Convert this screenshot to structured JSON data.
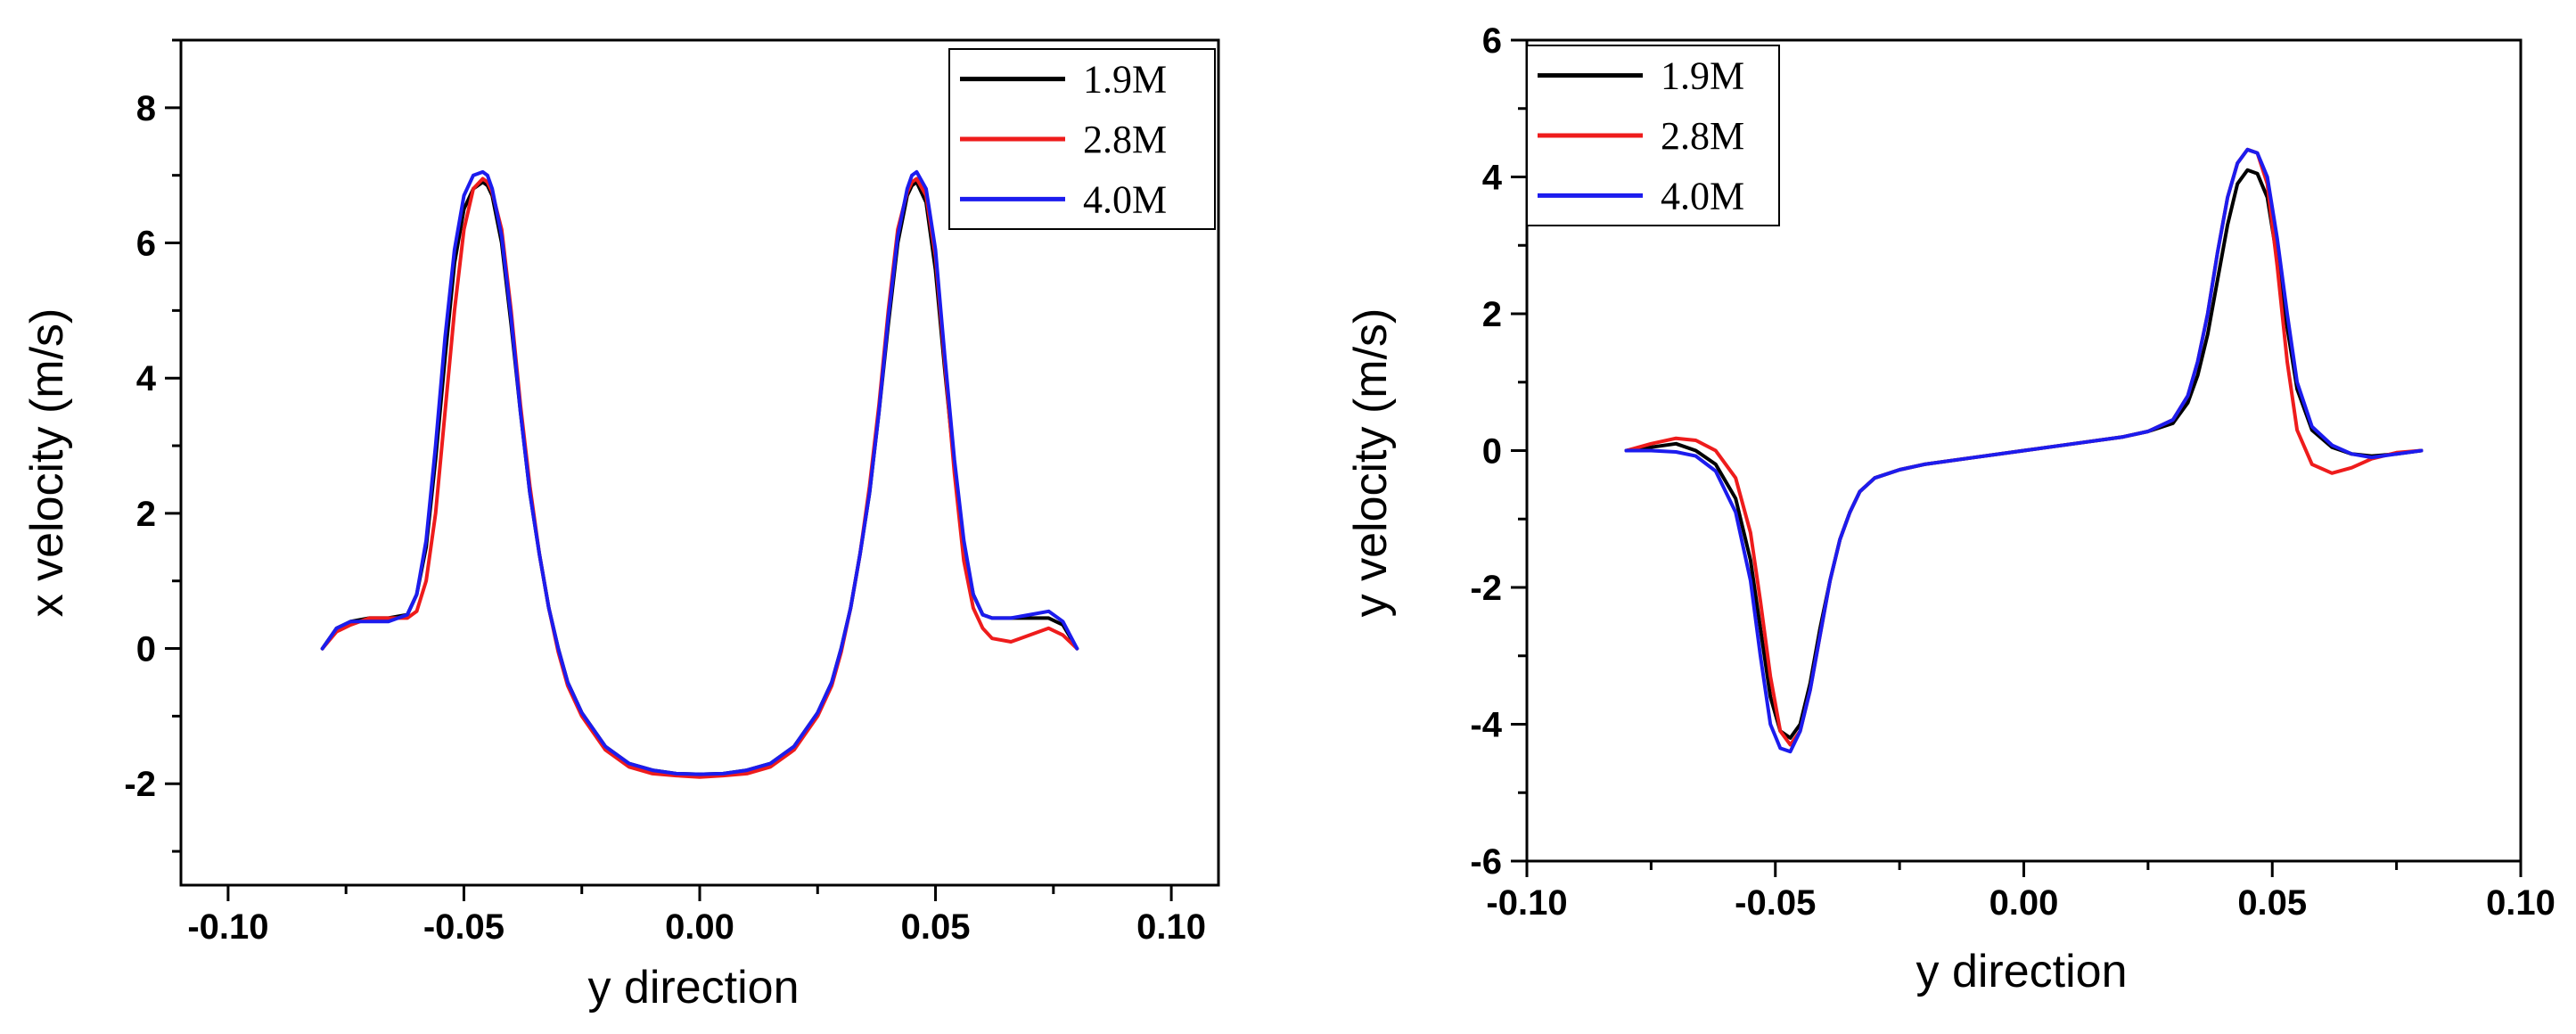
{
  "chart_data": [
    {
      "type": "line",
      "xlabel": "y direction",
      "ylabel": "x velocity (m/s)",
      "xlim": [
        -0.11,
        0.11
      ],
      "ylim": [
        -3.5,
        9
      ],
      "xticks": [
        "-0.10",
        "-0.05",
        "0.00",
        "0.05",
        "0.10"
      ],
      "xtick_values": [
        -0.1,
        -0.05,
        0,
        0.05,
        0.1
      ],
      "yticks": [
        "-2",
        "0",
        "2",
        "4",
        "6",
        "8"
      ],
      "ytick_values": [
        -2,
        0,
        2,
        4,
        6,
        8
      ],
      "legend_position": "top-right",
      "series": [
        {
          "name": "1.9M",
          "color": "#000000",
          "x": [
            -0.08,
            -0.077,
            -0.074,
            -0.07,
            -0.066,
            -0.062,
            -0.06,
            -0.058,
            -0.056,
            -0.054,
            -0.052,
            -0.05,
            -0.048,
            -0.046,
            -0.045,
            -0.044,
            -0.042,
            -0.04,
            -0.038,
            -0.036,
            -0.034,
            -0.032,
            -0.03,
            -0.028,
            -0.025,
            -0.02,
            -0.015,
            -0.01,
            -0.005,
            0,
            0.005,
            0.01,
            0.015,
            0.02,
            0.025,
            0.028,
            0.03,
            0.032,
            0.034,
            0.036,
            0.038,
            0.04,
            0.042,
            0.044,
            0.045,
            0.046,
            0.048,
            0.05,
            0.052,
            0.054,
            0.056,
            0.058,
            0.06,
            0.062,
            0.066,
            0.07,
            0.074,
            0.077,
            0.08
          ],
          "y": [
            0,
            0.3,
            0.4,
            0.45,
            0.45,
            0.5,
            0.8,
            1.5,
            2.8,
            4.3,
            5.7,
            6.5,
            6.8,
            6.9,
            6.85,
            6.7,
            6.0,
            4.8,
            3.5,
            2.3,
            1.4,
            0.6,
            0,
            -0.5,
            -0.95,
            -1.45,
            -1.7,
            -1.8,
            -1.85,
            -1.86,
            -1.85,
            -1.8,
            -1.7,
            -1.45,
            -0.95,
            -0.5,
            0,
            0.6,
            1.4,
            2.3,
            3.5,
            4.8,
            6.0,
            6.7,
            6.85,
            6.9,
            6.6,
            5.6,
            4.1,
            2.7,
            1.5,
            0.8,
            0.5,
            0.45,
            0.45,
            0.45,
            0.45,
            0.35,
            0
          ]
        },
        {
          "name": "2.8M",
          "color": "#ee1c1c",
          "x": [
            -0.08,
            -0.077,
            -0.074,
            -0.07,
            -0.066,
            -0.062,
            -0.06,
            -0.058,
            -0.056,
            -0.054,
            -0.052,
            -0.05,
            -0.048,
            -0.046,
            -0.045,
            -0.044,
            -0.042,
            -0.04,
            -0.038,
            -0.036,
            -0.034,
            -0.032,
            -0.03,
            -0.028,
            -0.025,
            -0.02,
            -0.015,
            -0.01,
            -0.005,
            0,
            0.005,
            0.01,
            0.015,
            0.02,
            0.025,
            0.028,
            0.03,
            0.032,
            0.034,
            0.036,
            0.038,
            0.04,
            0.042,
            0.044,
            0.045,
            0.046,
            0.048,
            0.05,
            0.052,
            0.054,
            0.056,
            0.058,
            0.06,
            0.062,
            0.066,
            0.07,
            0.074,
            0.077,
            0.08
          ],
          "y": [
            0,
            0.25,
            0.35,
            0.45,
            0.45,
            0.45,
            0.55,
            1.0,
            2.0,
            3.5,
            5.0,
            6.2,
            6.8,
            6.95,
            6.9,
            6.75,
            6.2,
            5.0,
            3.6,
            2.4,
            1.4,
            0.6,
            -0.05,
            -0.55,
            -1.0,
            -1.5,
            -1.75,
            -1.85,
            -1.88,
            -1.9,
            -1.88,
            -1.85,
            -1.75,
            -1.5,
            -1.0,
            -0.55,
            -0.05,
            0.6,
            1.4,
            2.4,
            3.6,
            5.0,
            6.2,
            6.75,
            6.9,
            6.95,
            6.7,
            5.8,
            4.2,
            2.6,
            1.3,
            0.6,
            0.3,
            0.15,
            0.1,
            0.2,
            0.3,
            0.2,
            0
          ]
        },
        {
          "name": "4.0M",
          "color": "#1c1cee",
          "x": [
            -0.08,
            -0.077,
            -0.074,
            -0.07,
            -0.066,
            -0.062,
            -0.06,
            -0.058,
            -0.056,
            -0.054,
            -0.052,
            -0.05,
            -0.048,
            -0.046,
            -0.045,
            -0.044,
            -0.042,
            -0.04,
            -0.038,
            -0.036,
            -0.034,
            -0.032,
            -0.03,
            -0.028,
            -0.025,
            -0.02,
            -0.015,
            -0.01,
            -0.005,
            0,
            0.005,
            0.01,
            0.015,
            0.02,
            0.025,
            0.028,
            0.03,
            0.032,
            0.034,
            0.036,
            0.038,
            0.04,
            0.042,
            0.044,
            0.045,
            0.046,
            0.048,
            0.05,
            0.052,
            0.054,
            0.056,
            0.058,
            0.06,
            0.062,
            0.066,
            0.07,
            0.074,
            0.077,
            0.08
          ],
          "y": [
            0,
            0.3,
            0.4,
            0.4,
            0.4,
            0.5,
            0.8,
            1.6,
            3.0,
            4.6,
            5.9,
            6.7,
            7.0,
            7.05,
            7.0,
            6.8,
            6.1,
            4.9,
            3.5,
            2.3,
            1.4,
            0.6,
            0,
            -0.5,
            -0.95,
            -1.45,
            -1.7,
            -1.8,
            -1.85,
            -1.86,
            -1.85,
            -1.8,
            -1.7,
            -1.45,
            -0.95,
            -0.5,
            0,
            0.6,
            1.4,
            2.3,
            3.5,
            4.9,
            6.1,
            6.8,
            7.0,
            7.05,
            6.8,
            5.9,
            4.3,
            2.8,
            1.6,
            0.8,
            0.5,
            0.45,
            0.45,
            0.5,
            0.55,
            0.4,
            0
          ]
        }
      ]
    },
    {
      "type": "line",
      "xlabel": "y direction",
      "ylabel": "y velocity (m/s)",
      "xlim": [
        -0.1,
        0.1
      ],
      "ylim": [
        -6,
        6
      ],
      "xticks": [
        "-0.10",
        "-0.05",
        "0.00",
        "0.05",
        "0.10"
      ],
      "xtick_values": [
        -0.1,
        -0.05,
        0,
        0.05,
        0.1
      ],
      "yticks": [
        "-6",
        "-4",
        "-2",
        "0",
        "2",
        "4",
        "6"
      ],
      "ytick_values": [
        -6,
        -4,
        -2,
        0,
        2,
        4,
        6
      ],
      "legend_position": "top-left",
      "series": [
        {
          "name": "1.9M",
          "color": "#000000",
          "x": [
            -0.08,
            -0.075,
            -0.07,
            -0.066,
            -0.062,
            -0.058,
            -0.055,
            -0.053,
            -0.051,
            -0.049,
            -0.047,
            -0.045,
            -0.043,
            -0.041,
            -0.039,
            -0.037,
            -0.035,
            -0.033,
            -0.03,
            -0.025,
            -0.02,
            -0.01,
            0,
            0.01,
            0.02,
            0.025,
            0.03,
            0.033,
            0.035,
            0.037,
            0.039,
            0.041,
            0.043,
            0.045,
            0.047,
            0.049,
            0.051,
            0.053,
            0.055,
            0.058,
            0.062,
            0.066,
            0.07,
            0.075,
            0.08
          ],
          "y": [
            0,
            0.05,
            0.1,
            0.0,
            -0.2,
            -0.7,
            -1.6,
            -2.6,
            -3.6,
            -4.1,
            -4.2,
            -4.0,
            -3.4,
            -2.6,
            -1.9,
            -1.3,
            -0.9,
            -0.6,
            -0.4,
            -0.28,
            -0.2,
            -0.1,
            0,
            0.1,
            0.2,
            0.28,
            0.4,
            0.7,
            1.1,
            1.7,
            2.5,
            3.3,
            3.9,
            4.1,
            4.05,
            3.7,
            2.8,
            1.8,
            0.9,
            0.3,
            0.05,
            -0.05,
            -0.08,
            -0.05,
            0
          ]
        },
        {
          "name": "2.8M",
          "color": "#ee1c1c",
          "x": [
            -0.08,
            -0.075,
            -0.07,
            -0.066,
            -0.062,
            -0.058,
            -0.055,
            -0.053,
            -0.051,
            -0.049,
            -0.047,
            -0.045,
            -0.043,
            -0.041,
            -0.039,
            -0.037,
            -0.035,
            -0.033,
            -0.03,
            -0.025,
            -0.02,
            -0.01,
            0,
            0.01,
            0.02,
            0.025,
            0.03,
            0.033,
            0.035,
            0.037,
            0.039,
            0.041,
            0.043,
            0.045,
            0.047,
            0.049,
            0.051,
            0.053,
            0.055,
            0.058,
            0.062,
            0.066,
            0.07,
            0.075,
            0.08
          ],
          "y": [
            0,
            0.1,
            0.18,
            0.15,
            0.0,
            -0.4,
            -1.2,
            -2.2,
            -3.3,
            -4.1,
            -4.3,
            -4.1,
            -3.5,
            -2.7,
            -1.9,
            -1.3,
            -0.9,
            -0.6,
            -0.4,
            -0.28,
            -0.2,
            -0.1,
            0,
            0.1,
            0.2,
            0.28,
            0.45,
            0.8,
            1.3,
            2.0,
            2.9,
            3.7,
            4.2,
            4.4,
            4.35,
            3.9,
            2.7,
            1.3,
            0.3,
            -0.2,
            -0.33,
            -0.25,
            -0.12,
            -0.03,
            0
          ]
        },
        {
          "name": "4.0M",
          "color": "#1c1cee",
          "x": [
            -0.08,
            -0.075,
            -0.07,
            -0.066,
            -0.062,
            -0.058,
            -0.055,
            -0.053,
            -0.051,
            -0.049,
            -0.047,
            -0.045,
            -0.043,
            -0.041,
            -0.039,
            -0.037,
            -0.035,
            -0.033,
            -0.03,
            -0.025,
            -0.02,
            -0.01,
            0,
            0.01,
            0.02,
            0.025,
            0.03,
            0.033,
            0.035,
            0.037,
            0.039,
            0.041,
            0.043,
            0.045,
            0.047,
            0.049,
            0.051,
            0.053,
            0.055,
            0.058,
            0.062,
            0.066,
            0.07,
            0.075,
            0.08
          ],
          "y": [
            0,
            0.0,
            -0.02,
            -0.08,
            -0.3,
            -0.9,
            -1.9,
            -3.0,
            -4.0,
            -4.35,
            -4.4,
            -4.1,
            -3.5,
            -2.7,
            -1.9,
            -1.3,
            -0.9,
            -0.6,
            -0.4,
            -0.28,
            -0.2,
            -0.1,
            0,
            0.1,
            0.2,
            0.28,
            0.45,
            0.8,
            1.3,
            2.0,
            2.9,
            3.7,
            4.2,
            4.4,
            4.35,
            4.0,
            3.1,
            2.0,
            1.0,
            0.35,
            0.08,
            -0.05,
            -0.1,
            -0.05,
            0
          ]
        }
      ]
    }
  ]
}
